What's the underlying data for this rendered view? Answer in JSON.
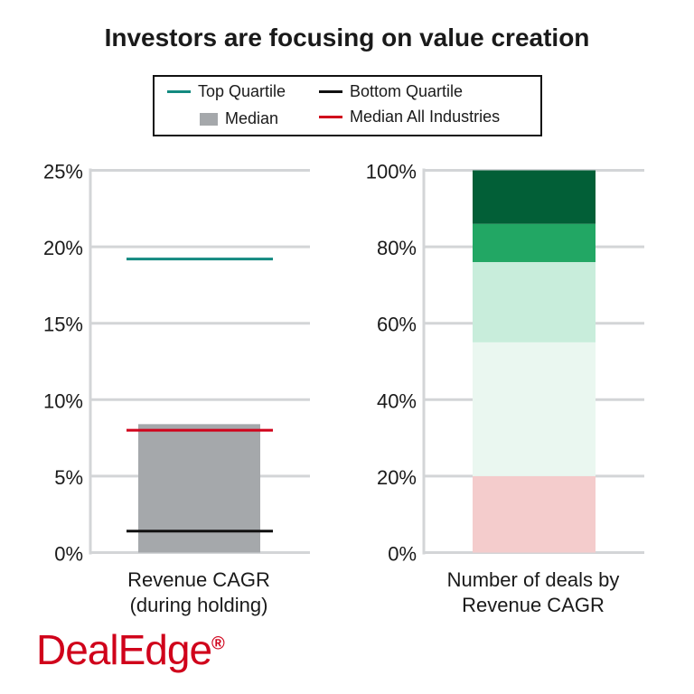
{
  "title": "Investors are focusing on value creation",
  "legend": [
    {
      "label": "Top Quartile",
      "color": "#138a80",
      "kind": "line"
    },
    {
      "label": "Bottom Quartile",
      "color": "#111111",
      "kind": "line"
    },
    {
      "label": "Median",
      "color": "#a5a8ab",
      "kind": "box"
    },
    {
      "label": "Median All Industries",
      "color": "#d0021b",
      "kind": "line"
    }
  ],
  "logo": "DealEdge",
  "logo_mark": "®",
  "chart_data": [
    {
      "type": "bar",
      "xlabel": "Revenue CAGR\n(during holding)",
      "ylim": [
        0,
        25
      ],
      "yticks": [
        "0%",
        "5%",
        "10%",
        "15%",
        "20%",
        "25%"
      ],
      "grid": true,
      "series": [
        {
          "name": "Median",
          "value": 8.4,
          "color": "#a5a8ab"
        },
        {
          "name": "Top Quartile",
          "value": 19.2,
          "color": "#138a80"
        },
        {
          "name": "Median All Industries",
          "value": 8.0,
          "color": "#d0021b"
        },
        {
          "name": "Bottom Quartile",
          "value": 1.4,
          "color": "#111111"
        }
      ]
    },
    {
      "type": "bar",
      "stacked": true,
      "xlabel": "Number of deals by\nRevenue CAGR",
      "ylim": [
        0,
        100
      ],
      "yticks": [
        "0%",
        "20%",
        "40%",
        "60%",
        "80%",
        "100%"
      ],
      "grid": true,
      "segments": [
        {
          "value": 20,
          "color": "#f4cccc"
        },
        {
          "value": 35,
          "color": "#eaf7f0"
        },
        {
          "value": 21,
          "color": "#c8eddb"
        },
        {
          "value": 10,
          "color": "#22a764"
        },
        {
          "value": 14,
          "color": "#025f37"
        }
      ]
    }
  ]
}
